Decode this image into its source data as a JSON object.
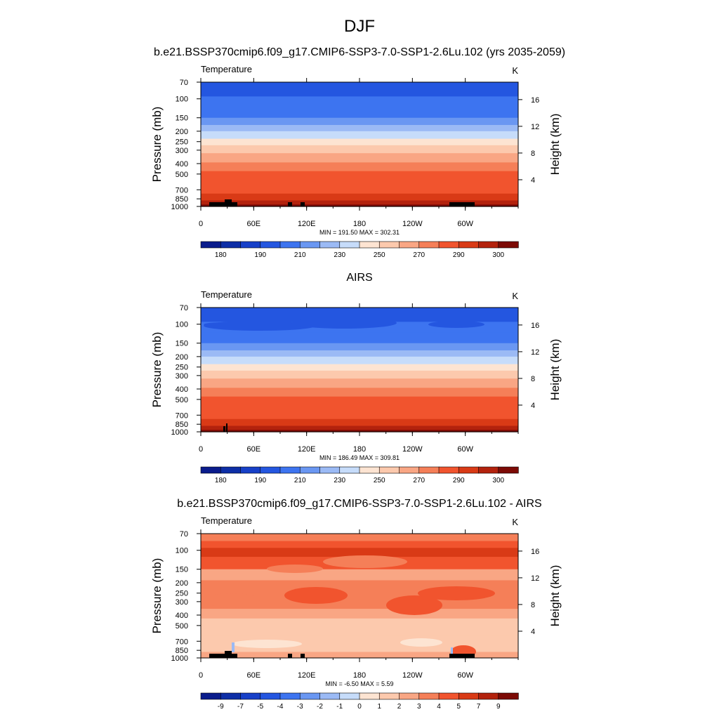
{
  "figure": {
    "title": "DJF",
    "colorbar_units_note": "K"
  },
  "chart_data": [
    {
      "type": "heatmap",
      "panel_title": "b.e21.BSSP370cmip6.f09_g17.CMIP6-SSP3-7.0-SSP1-2.6Lu.102 (yrs 2035-2059)",
      "variable": "Temperature",
      "units": "K",
      "ylabel": "Pressure (mb)",
      "y2label": "Height (km)",
      "yticks": [
        "70",
        "100",
        "150",
        "200",
        "250",
        "300",
        "400",
        "500",
        "700",
        "850",
        "1000"
      ],
      "y2ticks": [
        "16",
        "12",
        "8",
        "4"
      ],
      "xticks": [
        "0",
        "60E",
        "120E",
        "180",
        "120W",
        "60W"
      ],
      "stats": "MIN = 191.50  MAX = 302.31",
      "min": 191.5,
      "max": 302.31,
      "colorbar_labels": [
        "180",
        "190",
        "210",
        "230",
        "250",
        "270",
        "290",
        "300"
      ]
    },
    {
      "type": "heatmap",
      "panel_title": "AIRS",
      "variable": "Temperature",
      "units": "K",
      "ylabel": "Pressure (mb)",
      "y2label": "Height (km)",
      "yticks": [
        "70",
        "100",
        "150",
        "200",
        "250",
        "300",
        "400",
        "500",
        "700",
        "850",
        "1000"
      ],
      "y2ticks": [
        "16",
        "12",
        "8",
        "4"
      ],
      "xticks": [
        "0",
        "60E",
        "120E",
        "180",
        "120W",
        "60W"
      ],
      "stats": "MIN = 186.49  MAX = 309.81",
      "min": 186.49,
      "max": 309.81,
      "colorbar_labels": [
        "180",
        "190",
        "210",
        "230",
        "250",
        "270",
        "290",
        "300"
      ]
    },
    {
      "type": "heatmap",
      "panel_title": "b.e21.BSSP370cmip6.f09_g17.CMIP6-SSP3-7.0-SSP1-2.6Lu.102 - AIRS",
      "variable": "Temperature",
      "units": "K",
      "ylabel": "Pressure (mb)",
      "y2label": "Height (km)",
      "yticks": [
        "70",
        "100",
        "150",
        "200",
        "250",
        "300",
        "400",
        "500",
        "700",
        "850",
        "1000"
      ],
      "y2ticks": [
        "16",
        "12",
        "8",
        "4"
      ],
      "xticks": [
        "0",
        "60E",
        "120E",
        "180",
        "120W",
        "60W"
      ],
      "stats": "MIN =  -6.50  MAX =   5.59",
      "min": -6.5,
      "max": 5.59,
      "colorbar_labels": [
        "-9",
        "-7",
        "-5",
        "-4",
        "-3",
        "-2",
        "-1",
        "0",
        "1",
        "2",
        "3",
        "4",
        "5",
        "7",
        "9"
      ]
    }
  ],
  "palette": {
    "temperature": [
      "#0a1c8c",
      "#0d2ea6",
      "#1740c8",
      "#2456e0",
      "#3d74f0",
      "#6a97f2",
      "#9bbaf5",
      "#c6dcfa",
      "#fde4d2",
      "#fcc9ad",
      "#f9a684",
      "#f57f58",
      "#f1542e",
      "#d93a16",
      "#b3220d",
      "#7c0a05"
    ],
    "difference": [
      "#0a1c8c",
      "#0d2ea6",
      "#1740c8",
      "#2456e0",
      "#3d74f0",
      "#6a97f2",
      "#9bbaf5",
      "#c6dcfa",
      "#fde4d2",
      "#fcc9ad",
      "#f9a684",
      "#f57f58",
      "#f1542e",
      "#d93a16",
      "#b3220d",
      "#7c0a05"
    ]
  }
}
